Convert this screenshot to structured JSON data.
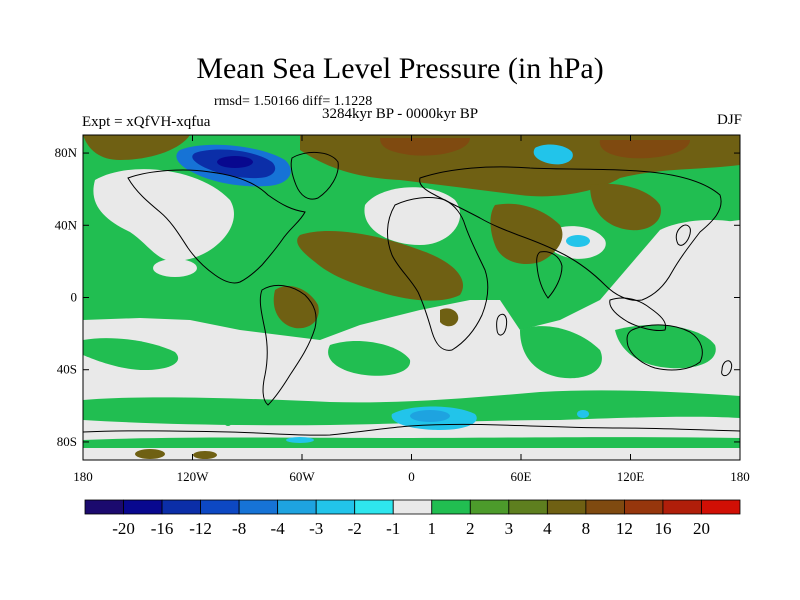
{
  "title": "Mean Sea Level Pressure (in hPa)",
  "stats": "rmsd= 1.50166 diff= 1.1228",
  "period": "3284kyr BP - 0000kyr BP",
  "experiment": "Expt = xQfVH-xqfua",
  "season": "DJF",
  "map": {
    "lon_range": [
      -180,
      180
    ],
    "lat_range": [
      -90,
      90
    ],
    "y_ticks": [
      {
        "label": "80N",
        "lat": 80
      },
      {
        "label": "40N",
        "lat": 40
      },
      {
        "label": "0",
        "lat": 0
      },
      {
        "label": "40S",
        "lat": -40
      },
      {
        "label": "80S",
        "lat": -80
      }
    ],
    "x_ticks": [
      {
        "label": "180",
        "lon": -180
      },
      {
        "label": "120W",
        "lon": -120
      },
      {
        "label": "60W",
        "lon": -60
      },
      {
        "label": "0",
        "lon": 0
      },
      {
        "label": "60E",
        "lon": 60
      },
      {
        "label": "120E",
        "lon": 120
      },
      {
        "label": "180",
        "lon": 180
      }
    ]
  },
  "colorbar": {
    "colors": [
      "#1b0a6e",
      "#08088f",
      "#0b2ea8",
      "#0d48c3",
      "#1673d6",
      "#1ea3e0",
      "#22c4ea",
      "#2ee6ee",
      "#e9e9e9",
      "#21be51",
      "#4c9b2b",
      "#5e7f1f",
      "#6f6013",
      "#7f4a10",
      "#96360c",
      "#b01e0a",
      "#d10f05"
    ],
    "labels": [
      "-20",
      "-16",
      "-12",
      "-8",
      "-4",
      "-3",
      "-2",
      "-1",
      "1",
      "2",
      "3",
      "4",
      "8",
      "12",
      "16",
      "20"
    ]
  },
  "colors": {
    "gray": "#e9e9e9",
    "green": "#21be51",
    "olive": "#6f6013",
    "brown": "#7f4a10",
    "darkblue": "#0b2ea8",
    "lightblue": "#22c4ea"
  }
}
